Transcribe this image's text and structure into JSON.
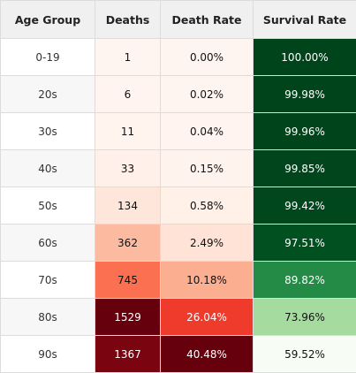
{
  "headers": [
    "Age Group",
    "Deaths",
    "Death Rate",
    "Survival Rate"
  ],
  "rows": [
    {
      "age": "0-19",
      "deaths": "1",
      "death_rate": "0.00%",
      "survival_rate": "100.00%"
    },
    {
      "age": "20s",
      "deaths": "6",
      "death_rate": "0.02%",
      "survival_rate": "99.98%"
    },
    {
      "age": "30s",
      "deaths": "11",
      "death_rate": "0.04%",
      "survival_rate": "99.96%"
    },
    {
      "age": "40s",
      "deaths": "33",
      "death_rate": "0.15%",
      "survival_rate": "99.85%"
    },
    {
      "age": "50s",
      "deaths": "134",
      "death_rate": "0.58%",
      "survival_rate": "99.42%"
    },
    {
      "age": "60s",
      "deaths": "362",
      "death_rate": "2.49%",
      "survival_rate": "97.51%"
    },
    {
      "age": "70s",
      "deaths": "745",
      "death_rate": "10.18%",
      "survival_rate": "89.82%"
    },
    {
      "age": "80s",
      "deaths": "1529",
      "death_rate": "26.04%",
      "survival_rate": "73.96%"
    },
    {
      "age": "90s",
      "deaths": "1367",
      "death_rate": "40.48%",
      "survival_rate": "59.52%"
    }
  ],
  "colors": {
    "deaths": [
      "#fff5f0",
      "#fff4ef",
      "#fff4ee",
      "#fff0e9",
      "#fee6da",
      "#fcbba1",
      "#fb7050",
      "#67000d",
      "#7a0510"
    ],
    "death_rate": [
      "#fff5f0",
      "#fff5f0",
      "#fff4ef",
      "#fff3ed",
      "#fff0e8",
      "#fee3d6",
      "#fcae91",
      "#ef3b2c",
      "#67000d"
    ],
    "survival_rate": [
      "#00441b",
      "#00441b",
      "#00441b",
      "#00451c",
      "#00471d",
      "#005020",
      "#238b45",
      "#a6dba0",
      "#f7fcf5"
    ]
  },
  "text_colors": {
    "deaths": [
      "#111111",
      "#111111",
      "#111111",
      "#111111",
      "#111111",
      "#111111",
      "#111111",
      "#ffffff",
      "#ffffff"
    ],
    "death_rate": [
      "#111111",
      "#111111",
      "#111111",
      "#111111",
      "#111111",
      "#111111",
      "#111111",
      "#ffffff",
      "#ffffff"
    ],
    "survival_rate": [
      "#ffffff",
      "#ffffff",
      "#ffffff",
      "#ffffff",
      "#ffffff",
      "#ffffff",
      "#ffffff",
      "#111111",
      "#111111"
    ]
  }
}
